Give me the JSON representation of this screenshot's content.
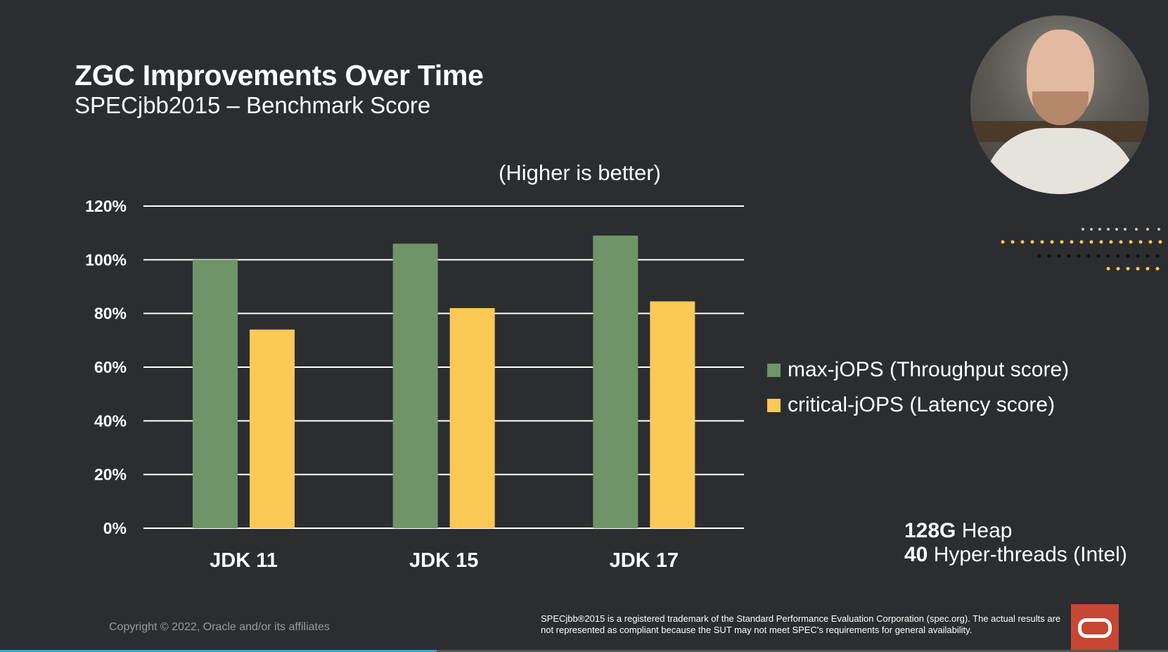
{
  "slide": {
    "title": "ZGC Improvements Over Time",
    "subtitle": "SPECjbb2015 – Benchmark Score",
    "note": "(Higher is better)",
    "specs": [
      {
        "bold": "128G",
        "text": " Heap"
      },
      {
        "bold": "40",
        "text": " Hyper-threads (Intel)"
      }
    ],
    "copyright": "Copyright © 2022, Oracle and/or its affiliates",
    "disclaimer": "SPECjbb®2015 is a registered trademark of the Standard Performance Evaluation Corporation (spec.org). The actual results are not represented as compliant because the SUT may not meet SPEC's requirements for general availability."
  },
  "video": {
    "progress": 0.374
  },
  "colors": {
    "background": "#2b2d31",
    "max_jops": "#6e9468",
    "critical_jops": "#fcc856",
    "gridline": "#ffffff",
    "oracle_red": "#c74634"
  },
  "chart_data": {
    "type": "bar",
    "title": "",
    "xlabel": "",
    "ylabel": "",
    "categories": [
      "JDK 11",
      "JDK 15",
      "JDK 17"
    ],
    "series": [
      {
        "name": "max-jOPS (Throughput score)",
        "values": [
          100,
          106,
          109
        ],
        "color": "#6e9468"
      },
      {
        "name": "critical-jOPS (Latency score)",
        "values": [
          74,
          82,
          84.5
        ],
        "color": "#fcc856"
      }
    ],
    "ylim": [
      0,
      120
    ],
    "yticks": [
      0,
      20,
      40,
      60,
      80,
      100,
      120
    ],
    "ytick_suffix": "%",
    "grid": true,
    "legend_position": "right"
  }
}
